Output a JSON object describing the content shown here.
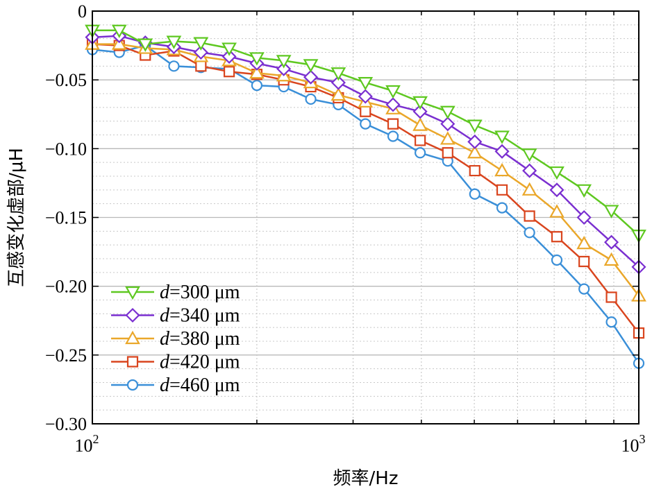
{
  "chart_data": {
    "type": "line",
    "xlabel": "频率/Hz",
    "ylabel": "互感变化虚部/μH",
    "xscale": "log",
    "xlim": [
      100,
      1000
    ],
    "ylim": [
      -0.3,
      0
    ],
    "x_tick_labels": [
      {
        "value": 100,
        "base": "10",
        "exp": "2"
      },
      {
        "value": 1000,
        "base": "10",
        "exp": "3"
      }
    ],
    "y_ticks": [
      0,
      -0.05,
      -0.1,
      -0.15,
      -0.2,
      -0.25,
      -0.3
    ],
    "y_tick_labels": [
      "0",
      "−0.05",
      "−0.10",
      "−0.15",
      "−0.20",
      "−0.25",
      "−0.30"
    ],
    "grid": true,
    "legend_position": "bottom-left",
    "legend_var": "d",
    "x": [
      100,
      112,
      125,
      141,
      158,
      178,
      200,
      224,
      251,
      282,
      316,
      355,
      398,
      447,
      501,
      562,
      631,
      708,
      794,
      891,
      1000
    ],
    "series": [
      {
        "name": "=300 μm",
        "marker": "triangle-down",
        "color": "#5ec820",
        "values": [
          -0.014,
          -0.014,
          -0.024,
          -0.022,
          -0.023,
          -0.027,
          -0.034,
          -0.036,
          -0.039,
          -0.045,
          -0.052,
          -0.058,
          -0.066,
          -0.073,
          -0.083,
          -0.091,
          -0.104,
          -0.117,
          -0.13,
          -0.145,
          -0.163
        ]
      },
      {
        "name": "=340 μm",
        "marker": "diamond",
        "color": "#7a2fd0",
        "values": [
          -0.019,
          -0.018,
          -0.023,
          -0.026,
          -0.03,
          -0.033,
          -0.038,
          -0.042,
          -0.048,
          -0.052,
          -0.062,
          -0.068,
          -0.073,
          -0.082,
          -0.095,
          -0.102,
          -0.116,
          -0.13,
          -0.15,
          -0.168,
          -0.186
        ]
      },
      {
        "name": "=380 μm",
        "marker": "triangle-up",
        "color": "#eaa72a",
        "values": [
          -0.024,
          -0.024,
          -0.027,
          -0.028,
          -0.033,
          -0.036,
          -0.045,
          -0.047,
          -0.052,
          -0.061,
          -0.066,
          -0.071,
          -0.083,
          -0.093,
          -0.103,
          -0.116,
          -0.13,
          -0.146,
          -0.169,
          -0.181,
          -0.207
        ]
      },
      {
        "name": "=420 μm",
        "marker": "square",
        "color": "#d9451e",
        "values": [
          -0.024,
          -0.025,
          -0.032,
          -0.029,
          -0.04,
          -0.044,
          -0.046,
          -0.05,
          -0.055,
          -0.063,
          -0.073,
          -0.082,
          -0.094,
          -0.103,
          -0.116,
          -0.13,
          -0.149,
          -0.164,
          -0.182,
          -0.208,
          -0.234
        ]
      },
      {
        "name": "=460 μm",
        "marker": "circle",
        "color": "#3a8fd8",
        "values": [
          -0.028,
          -0.03,
          -0.025,
          -0.04,
          -0.041,
          -0.042,
          -0.054,
          -0.055,
          -0.064,
          -0.068,
          -0.082,
          -0.091,
          -0.103,
          -0.109,
          -0.133,
          -0.143,
          -0.161,
          -0.181,
          -0.202,
          -0.226,
          -0.256
        ]
      }
    ]
  }
}
